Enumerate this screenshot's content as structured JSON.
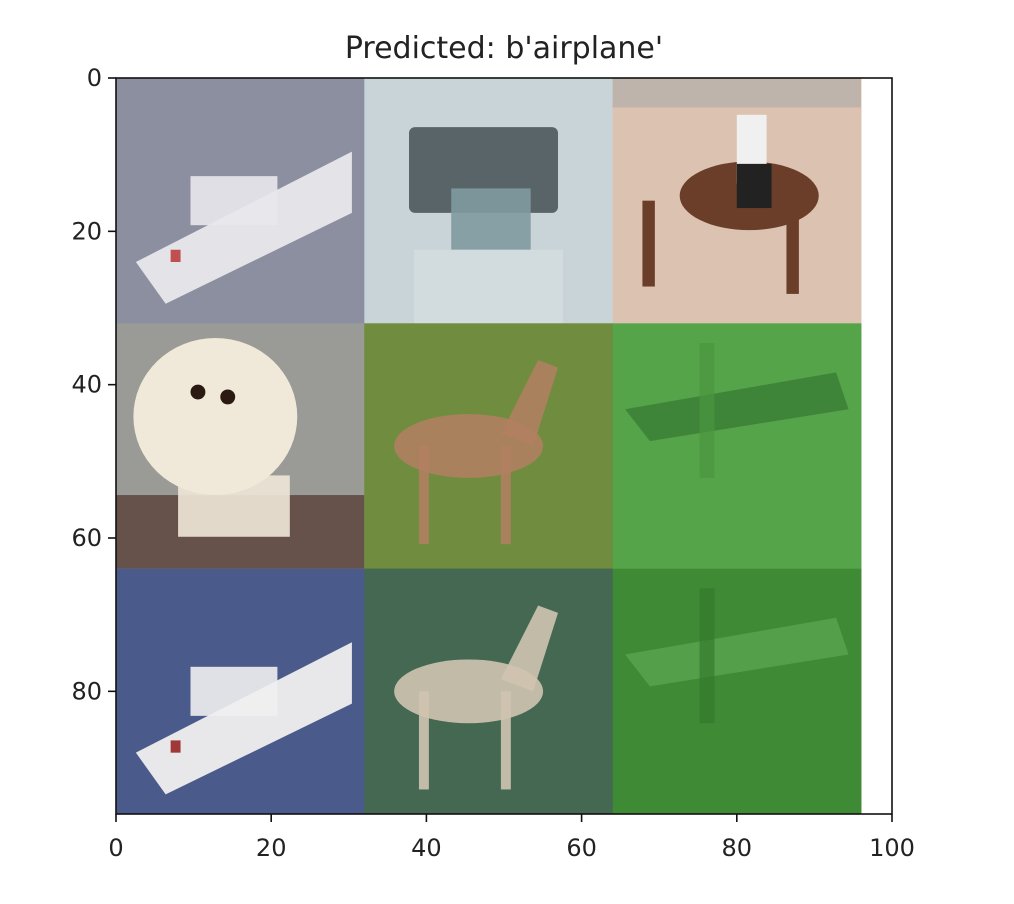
{
  "chart_data": {
    "type": "image-grid",
    "title": "Predicted: b'airplane'",
    "xlabel": "",
    "ylabel": "",
    "xlim": [
      0,
      100
    ],
    "ylim": [
      0,
      96
    ],
    "x_ticks": [
      0,
      20,
      40,
      60,
      80,
      100
    ],
    "y_ticks": [
      0,
      20,
      40,
      60,
      80
    ],
    "image_extent": {
      "width": 96,
      "height": 96
    },
    "grid": {
      "rows": 3,
      "cols": 3,
      "tile_size": 32
    },
    "tiles": [
      {
        "subject": "ship",
        "row": 0,
        "col": 0,
        "bg": "#8c8fa0",
        "fg": "#e8e8ec",
        "accent": "#c05050"
      },
      {
        "subject": "truck",
        "row": 0,
        "col": 1,
        "bg": "#c8d4d8",
        "fg": "#445055",
        "accent": "#7f9aa0"
      },
      {
        "subject": "horse",
        "row": 0,
        "col": 2,
        "bg": "#dcc2b0",
        "fg": "#6a3e28",
        "accent": "#222222"
      },
      {
        "subject": "dog",
        "row": 1,
        "col": 0,
        "bg": "#9a9a96",
        "fg": "#f0e8d8",
        "accent": "#2a1a12"
      },
      {
        "subject": "deer",
        "row": 1,
        "col": 1,
        "bg": "#5c7a38",
        "fg": "#b08060",
        "accent": "#a0b850"
      },
      {
        "subject": "airplane",
        "row": 1,
        "col": 2,
        "bg": "#55a44a",
        "fg": "#3a7d34",
        "accent": "#4a9640"
      },
      {
        "subject": "ship",
        "row": 2,
        "col": 0,
        "bg": "#4a5a8a",
        "fg": "#f0f0f0",
        "accent": "#a03838"
      },
      {
        "subject": "deer",
        "row": 2,
        "col": 1,
        "bg": "#3c5a48",
        "fg": "#d0c4b0",
        "accent": "#5a8a6a"
      },
      {
        "subject": "airplane",
        "row": 2,
        "col": 2,
        "bg": "#3f8a35",
        "fg": "#5aa550",
        "accent": "#357a2d"
      }
    ]
  }
}
